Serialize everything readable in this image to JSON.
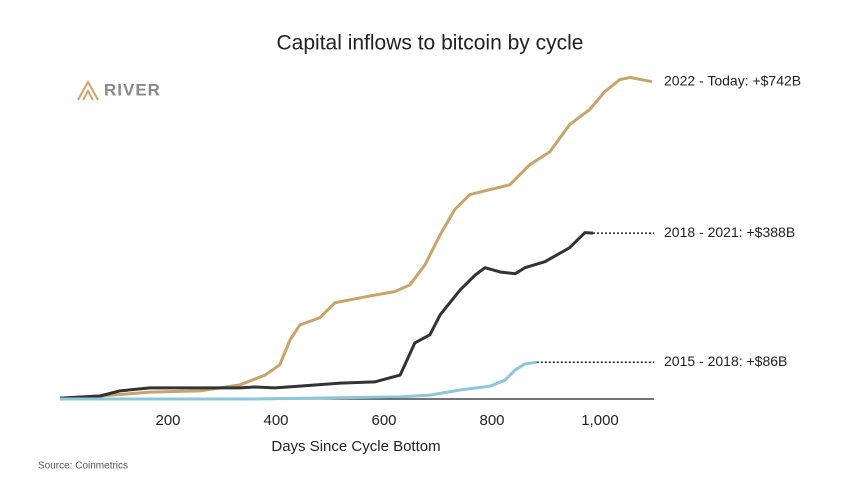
{
  "chart_data": {
    "type": "line",
    "title": "Capital inflows to bitcoin by cycle",
    "logo": "RIVER",
    "source": "Source: Coinmetrics",
    "xlabel": "Days Since Cycle Bottom",
    "xlim": [
      0,
      1100
    ],
    "xticks": [
      200,
      400,
      600,
      800,
      {
        "value": 1000,
        "label": "1,000"
      }
    ],
    "ylim": [
      0,
      760
    ],
    "series": [
      {
        "name": "2022 - Today: +$742B",
        "color": "#c9a46a",
        "x": [
          0,
          74,
          167,
          259,
          333,
          380,
          407,
          426,
          444,
          481,
          509,
          574,
          620,
          648,
          676,
          704,
          731,
          759,
          833,
          870,
          907,
          944,
          981,
          1009,
          1037,
          1056,
          1096
        ],
        "values": [
          2,
          7,
          16,
          19,
          33,
          56,
          80,
          138,
          173,
          190,
          225,
          241,
          251,
          267,
          314,
          384,
          443,
          478,
          501,
          548,
          578,
          642,
          677,
          719,
          747,
          752,
          742
        ]
      },
      {
        "name": "2018 - 2021: +$388B",
        "color": "#333333",
        "x": [
          0,
          74,
          111,
          167,
          259,
          333,
          361,
          398,
          444,
          519,
          583,
          630,
          657,
          685,
          704,
          741,
          769,
          787,
          815,
          843,
          861,
          898,
          944,
          972,
          987
        ],
        "values": [
          2,
          7,
          19,
          26,
          26,
          26,
          28,
          26,
          30,
          37,
          40,
          56,
          131,
          150,
          197,
          255,
          290,
          307,
          297,
          293,
          307,
          321,
          354,
          389,
          388
        ]
      },
      {
        "name": "2015 - 2018: +$86B",
        "color": "#8cc6d8",
        "x": [
          0,
          352,
          630,
          685,
          741,
          796,
          824,
          843,
          861,
          883
        ],
        "values": [
          0,
          0,
          5,
          9,
          21,
          30,
          44,
          68,
          82,
          86
        ]
      }
    ]
  }
}
